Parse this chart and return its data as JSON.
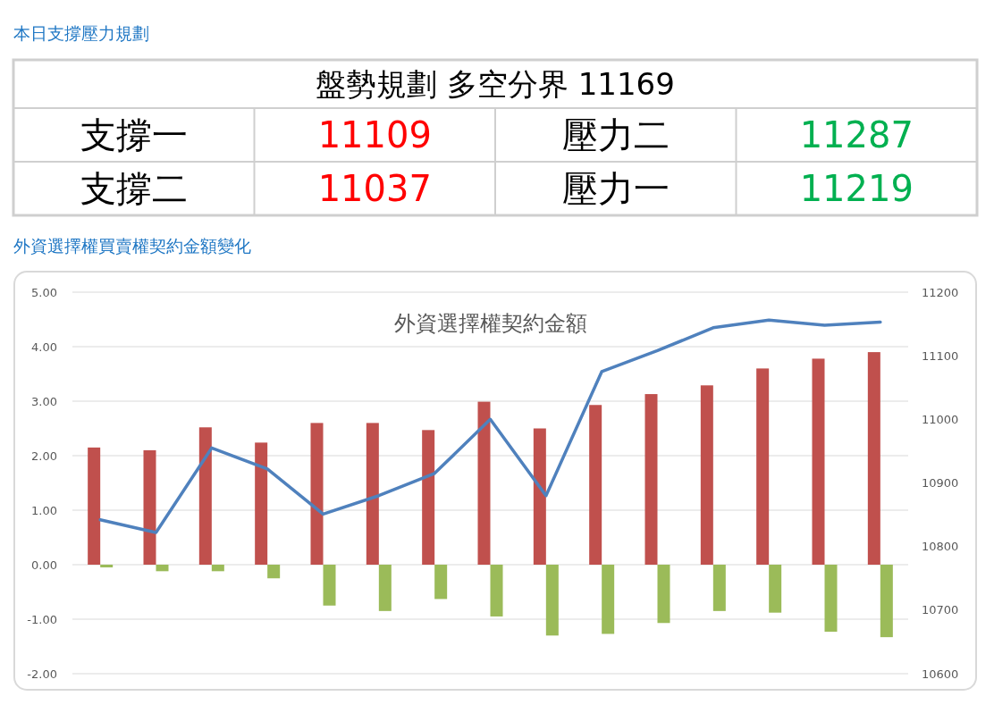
{
  "chart_data": [
    {
      "type": "other",
      "title": "本日支撐壓力規劃",
      "annotations": [
        "盤勢規劃 多空分界 11169",
        "支撐一",
        "11109",
        "壓力二",
        "11287",
        "支撐二",
        "11037",
        "壓力一",
        "11219"
      ]
    },
    {
      "type": "bar",
      "title": "外資選擇權買賣權契約金額變化",
      "subtitle": "外資選擇權契約金額",
      "categories": [
        null,
        null,
        null,
        null,
        null,
        null,
        null,
        null,
        null,
        null,
        null,
        null,
        null,
        null,
        null
      ],
      "series": [
        {
          "type": "bar",
          "color": "#c0504d",
          "values": [
            2.15,
            2.1,
            2.52,
            2.24,
            2.6,
            2.6,
            2.47,
            2.99,
            2.5,
            2.93,
            3.13,
            3.29,
            3.6,
            3.78,
            3.9
          ]
        },
        {
          "type": "bar",
          "color": "#9bbb59",
          "values": [
            -0.05,
            -0.12,
            -0.12,
            -0.25,
            -0.75,
            -0.85,
            -0.63,
            -0.95,
            -1.3,
            -1.27,
            -1.07,
            -0.85,
            -0.88,
            -1.23,
            -1.33
          ]
        },
        {
          "type": "line",
          "axis": "y2",
          "color": "#4f81bd",
          "values": [
            10842,
            10822,
            10955,
            10922,
            10851,
            10880,
            10915,
            11000,
            10880,
            11075,
            11108,
            11144,
            11156,
            11148,
            11153
          ]
        }
      ],
      "ylim": [
        -2,
        5
      ],
      "yticks": [
        {
          "value": -2,
          "label": "-2.00"
        },
        {
          "value": -1,
          "label": "-1.00"
        },
        {
          "value": 0,
          "label": "0.00"
        },
        {
          "value": 1,
          "label": "1.00"
        },
        {
          "value": 2,
          "label": "2.00"
        },
        {
          "value": 3,
          "label": "3.00"
        },
        {
          "value": 4,
          "label": "4.00"
        },
        {
          "value": 5,
          "label": "5.00"
        }
      ],
      "y2lim": [
        10600,
        11200
      ],
      "y2ticks": [
        10600,
        10700,
        10800,
        10900,
        11000,
        11100,
        11200
      ],
      "grid": "y"
    }
  ]
}
